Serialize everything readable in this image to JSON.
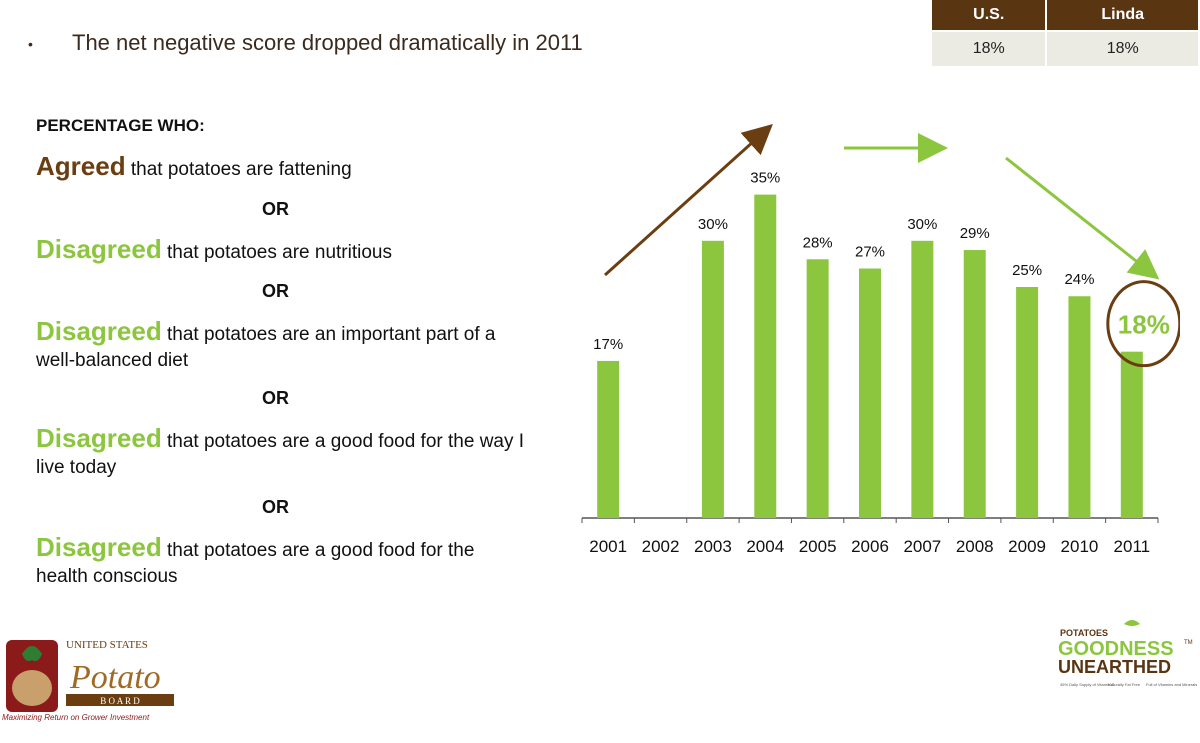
{
  "headline": {
    "bullet": "•",
    "text": "The net negative score dropped dramatically in 2011"
  },
  "summary_table": {
    "headers": [
      "U.S.",
      "Linda"
    ],
    "values": [
      "18%",
      "18%"
    ]
  },
  "criteria": {
    "heading": "PERCENTAGE WHO:",
    "or_label": "OR",
    "items": [
      {
        "keyword": "Agreed",
        "text": " that potatoes are fattening"
      },
      {
        "keyword": "Disagreed",
        "text": " that potatoes are nutritious"
      },
      {
        "keyword": "Disagreed",
        "text": " that potatoes are an important part of a well-balanced diet"
      },
      {
        "keyword": "Disagreed",
        "text": " that potatoes are a good food for the way I live today"
      },
      {
        "keyword": "Disagreed",
        "text": " that potatoes are a good food for the health conscious"
      }
    ]
  },
  "chart_data": {
    "type": "bar",
    "categories": [
      "2001",
      "2002",
      "2003",
      "2004",
      "2005",
      "2006",
      "2007",
      "2008",
      "2009",
      "2010",
      "2011"
    ],
    "values": [
      17,
      null,
      30,
      35,
      28,
      27,
      30,
      29,
      25,
      24,
      18
    ],
    "data_labels": [
      "17%",
      "",
      "30%",
      "35%",
      "28%",
      "27%",
      "30%",
      "29%",
      "25%",
      "24%",
      "18%"
    ],
    "highlighted_category": "2011",
    "ylim": [
      0,
      40
    ],
    "grid": false,
    "title": "",
    "xlabel": "",
    "ylabel": "",
    "colors": {
      "bar": "#8cc63f",
      "highlight_label": "#8cc63f",
      "circle": "#6b3e12",
      "arrow_up": "#6b3e12",
      "arrow_flat": "#8cc63f",
      "arrow_down": "#8cc63f"
    }
  },
  "logos": {
    "usp": {
      "line1": "UNITED STATES",
      "script": "Potato",
      "board": "B O A R D",
      "tagline": "Maximizing Return on Grower Investment"
    },
    "goodness": {
      "line1": "POTATOES",
      "line2": "GOODNESS",
      "line3": "UNEARTHED",
      "tm": "TM",
      "tags": [
        "45% Daily Supply of Vitamin C",
        "Naturally Fat Free",
        "Full of Vitamins and Minerals"
      ]
    }
  }
}
